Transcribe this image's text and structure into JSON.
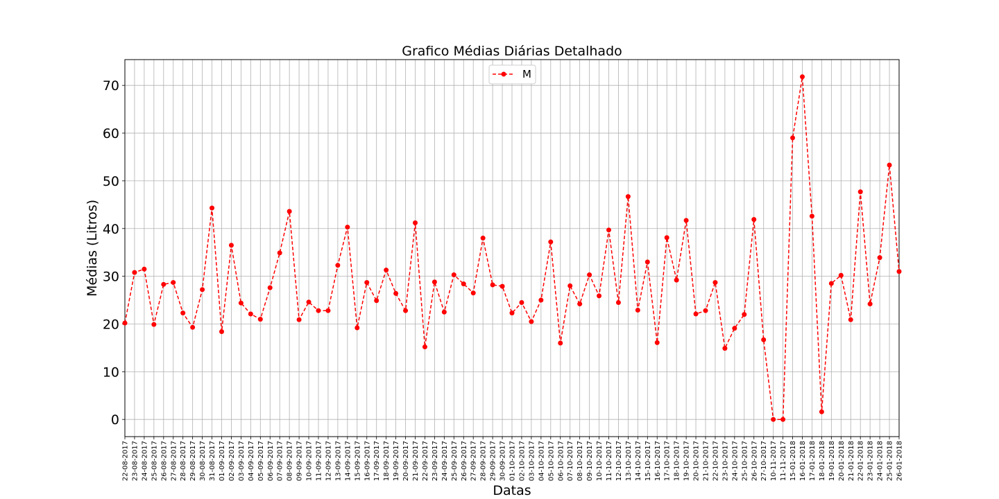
{
  "chart_data": {
    "type": "line",
    "title": "Grafico Médias Diárias Detalhado",
    "xlabel": "Datas",
    "ylabel": "Médias (Litros)",
    "ylim": [
      -3.6,
      75.4
    ],
    "yticks": [
      0,
      10,
      20,
      30,
      40,
      50,
      60,
      70
    ],
    "grid": true,
    "legend": {
      "position": "top-center",
      "label": "M"
    },
    "series_color": "#ff0000",
    "line_style": "dashed",
    "marker": "circle",
    "categories": [
      "22-08-2017",
      "23-08-2017",
      "24-08-2017",
      "25-08-2017",
      "26-08-2017",
      "27-08-2017",
      "28-08-2017",
      "29-08-2017",
      "30-08-2017",
      "31-08-2017",
      "01-09-2017",
      "02-09-2017",
      "03-09-2017",
      "04-09-2017",
      "05-09-2017",
      "06-09-2017",
      "07-09-2017",
      "08-09-2017",
      "09-09-2017",
      "10-09-2017",
      "11-09-2017",
      "12-09-2017",
      "13-09-2017",
      "14-09-2017",
      "15-09-2017",
      "16-09-2017",
      "17-09-2017",
      "18-09-2017",
      "19-09-2017",
      "20-09-2017",
      "21-09-2017",
      "22-09-2017",
      "23-09-2017",
      "24-09-2017",
      "25-09-2017",
      "26-09-2017",
      "27-09-2017",
      "28-09-2017",
      "29-09-2017",
      "30-09-2017",
      "01-10-2017",
      "02-10-2017",
      "03-10-2017",
      "04-10-2017",
      "05-10-2017",
      "06-10-2017",
      "07-10-2017",
      "08-10-2017",
      "09-10-2017",
      "10-10-2017",
      "11-10-2017",
      "12-10-2017",
      "13-10-2017",
      "14-10-2017",
      "15-10-2017",
      "16-10-2017",
      "17-10-2017",
      "18-10-2017",
      "19-10-2017",
      "20-10-2017",
      "21-10-2017",
      "22-10-2017",
      "23-10-2017",
      "24-10-2017",
      "25-10-2017",
      "26-10-2017",
      "27-10-2017",
      "10-11-2017",
      "11-11-2017",
      "15-01-2018",
      "16-01-2018",
      "17-01-2018",
      "18-01-2018",
      "19-01-2018",
      "20-01-2018",
      "21-01-2018",
      "22-01-2018",
      "23-01-2018",
      "24-01-2018",
      "25-01-2018",
      "26-01-2018"
    ],
    "values": [
      20.2,
      30.8,
      31.5,
      19.9,
      28.3,
      28.7,
      22.3,
      19.3,
      27.2,
      44.3,
      18.4,
      36.5,
      24.4,
      22.1,
      21.0,
      27.6,
      34.9,
      43.6,
      20.9,
      24.6,
      22.8,
      22.8,
      32.3,
      40.3,
      19.2,
      28.7,
      24.9,
      31.3,
      26.4,
      22.8,
      41.2,
      15.2,
      28.8,
      22.5,
      30.3,
      28.4,
      26.5,
      38.0,
      28.2,
      27.9,
      22.3,
      24.5,
      20.5,
      25.0,
      37.2,
      16.0,
      28.0,
      24.2,
      30.3,
      25.9,
      39.7,
      24.5,
      46.7,
      22.9,
      33.0,
      16.1,
      38.1,
      29.2,
      41.7,
      22.1,
      22.8,
      28.7,
      14.9,
      19.1,
      22.0,
      41.9,
      16.7,
      0.0,
      0.0,
      59.0,
      71.8,
      42.6,
      1.6,
      28.5,
      30.2,
      20.9,
      47.7,
      24.2,
      33.9,
      53.3,
      31.0
    ]
  }
}
